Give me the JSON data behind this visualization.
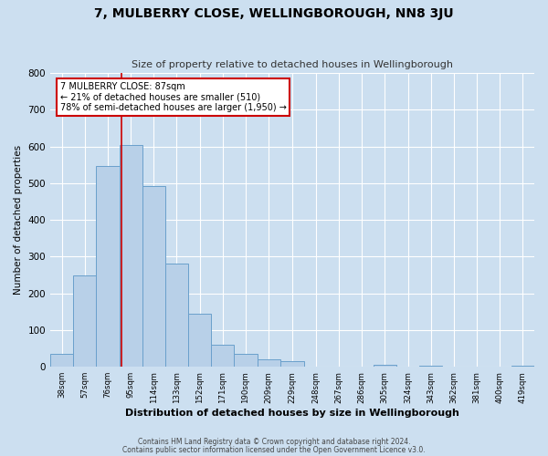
{
  "title": "7, MULBERRY CLOSE, WELLINGBOROUGH, NN8 3JU",
  "subtitle": "Size of property relative to detached houses in Wellingborough",
  "xlabel": "Distribution of detached houses by size in Wellingborough",
  "ylabel": "Number of detached properties",
  "bin_labels": [
    "38sqm",
    "57sqm",
    "76sqm",
    "95sqm",
    "114sqm",
    "133sqm",
    "152sqm",
    "171sqm",
    "190sqm",
    "209sqm",
    "229sqm",
    "248sqm",
    "267sqm",
    "286sqm",
    "305sqm",
    "324sqm",
    "343sqm",
    "362sqm",
    "381sqm",
    "400sqm",
    "419sqm"
  ],
  "bin_edges": [
    28.5,
    47.5,
    66.5,
    85.5,
    104.5,
    123.5,
    142.5,
    161.5,
    180.5,
    199.5,
    218.5,
    238.5,
    257.5,
    276.5,
    295.5,
    314.5,
    333.5,
    352.5,
    371.5,
    390.5,
    409.5,
    428.5
  ],
  "bar_heights": [
    35,
    250,
    548,
    605,
    493,
    280,
    145,
    60,
    35,
    20,
    15,
    0,
    0,
    0,
    5,
    0,
    3,
    0,
    0,
    0,
    3
  ],
  "bar_color": "#b8d0e8",
  "bar_edge_color": "#6aa0cc",
  "property_line_x": 87,
  "property_line_color": "#cc0000",
  "annotation_line1": "7 MULBERRY CLOSE: 87sqm",
  "annotation_line2": "← 21% of detached houses are smaller (510)",
  "annotation_line3": "78% of semi-detached houses are larger (1,950) →",
  "annotation_box_color": "#ffffff",
  "annotation_box_edge_color": "#cc0000",
  "ylim": [
    0,
    800
  ],
  "yticks": [
    0,
    100,
    200,
    300,
    400,
    500,
    600,
    700,
    800
  ],
  "footnote1": "Contains HM Land Registry data © Crown copyright and database right 2024.",
  "footnote2": "Contains public sector information licensed under the Open Government Licence v3.0.",
  "bg_color": "#ccdff0",
  "plot_bg_color": "#ccdff0"
}
